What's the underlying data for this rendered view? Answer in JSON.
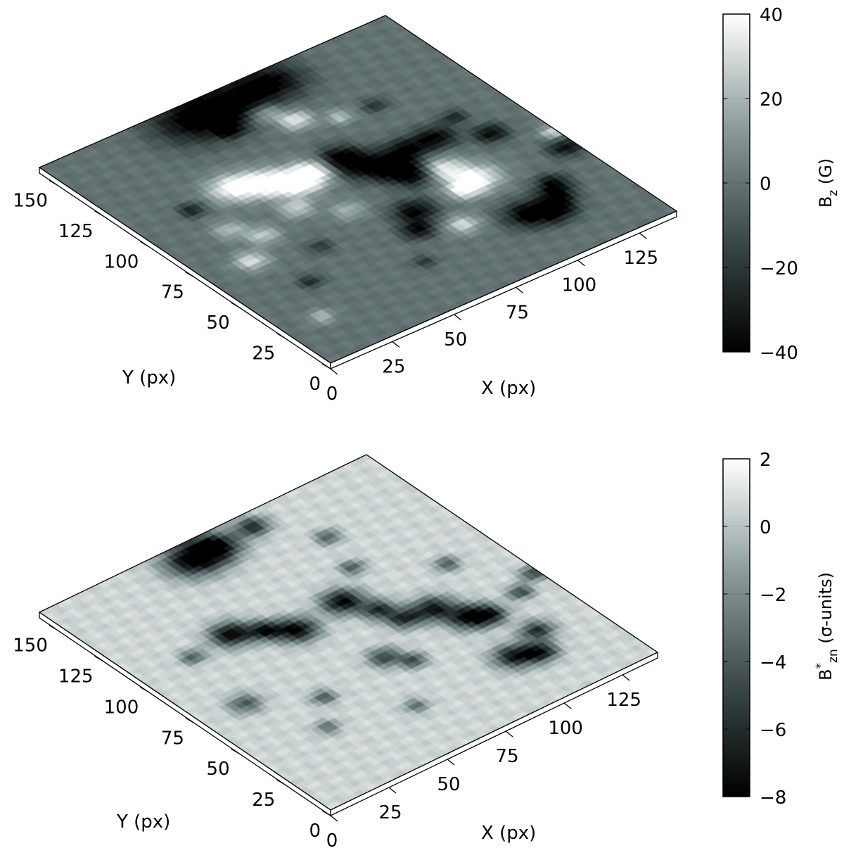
{
  "chart_data": [
    {
      "type": "heatmap",
      "view": "3D surface (oblique)",
      "x": {
        "label": "X (px)",
        "lim": [
          0,
          140
        ],
        "ticks": [
          "0",
          "25",
          "50",
          "75",
          "100",
          "125"
        ]
      },
      "y": {
        "label": "Y (px)",
        "lim": [
          0,
          160
        ],
        "ticks": [
          "0",
          "25",
          "50",
          "75",
          "100",
          "125",
          "150"
        ]
      },
      "colorbar": {
        "label": "B",
        "label_sub": "z",
        "label_tail": " (G)",
        "range": [
          -40,
          40
        ],
        "ticks": [
          "40",
          "20",
          "0",
          "−20",
          "−40"
        ],
        "colormap": [
          "#000000",
          "#3b4949",
          "#8a9a9a",
          "#ffffff"
        ]
      },
      "blobs": [
        {
          "x": 55,
          "y": 150,
          "v": -40,
          "s": 10
        },
        {
          "x": 70,
          "y": 150,
          "v": -40,
          "s": 9
        },
        {
          "x": 88,
          "y": 152,
          "v": -38,
          "s": 8
        },
        {
          "x": 75,
          "y": 138,
          "v": 30,
          "s": 4
        },
        {
          "x": 80,
          "y": 128,
          "v": 36,
          "s": 4
        },
        {
          "x": 40,
          "y": 108,
          "v": 40,
          "s": 6
        },
        {
          "x": 50,
          "y": 103,
          "v": 40,
          "s": 6
        },
        {
          "x": 58,
          "y": 96,
          "v": 40,
          "s": 6
        },
        {
          "x": 66,
          "y": 99,
          "v": 38,
          "s": 5
        },
        {
          "x": 77,
          "y": 100,
          "v": -40,
          "s": 5
        },
        {
          "x": 80,
          "y": 91,
          "v": -40,
          "s": 6
        },
        {
          "x": 86,
          "y": 83,
          "v": -40,
          "s": 5
        },
        {
          "x": 89,
          "y": 75,
          "v": -40,
          "s": 5
        },
        {
          "x": 96,
          "y": 89,
          "v": -40,
          "s": 5
        },
        {
          "x": 108,
          "y": 89,
          "v": -38,
          "s": 5
        },
        {
          "x": 123,
          "y": 79,
          "v": -38,
          "s": 4
        },
        {
          "x": 98,
          "y": 72,
          "v": 36,
          "s": 5
        },
        {
          "x": 103,
          "y": 60,
          "v": 40,
          "s": 6
        },
        {
          "x": 96,
          "y": 57,
          "v": 32,
          "s": 4
        },
        {
          "x": 76,
          "y": 57,
          "v": -40,
          "s": 5
        },
        {
          "x": 70,
          "y": 47,
          "v": -36,
          "s": 4
        },
        {
          "x": 83,
          "y": 40,
          "v": 30,
          "s": 4
        },
        {
          "x": 103,
          "y": 31,
          "v": -40,
          "s": 6
        },
        {
          "x": 111,
          "y": 27,
          "v": -40,
          "s": 5
        },
        {
          "x": 117,
          "y": 34,
          "v": -34,
          "s": 4
        },
        {
          "x": 120,
          "y": 41,
          "v": -34,
          "s": 4
        },
        {
          "x": 136,
          "y": 56,
          "v": -36,
          "s": 4
        },
        {
          "x": 139,
          "y": 66,
          "v": 30,
          "s": 3
        },
        {
          "x": 60,
          "y": 137,
          "v": -34,
          "s": 3
        },
        {
          "x": 22,
          "y": 106,
          "v": -30,
          "s": 3
        },
        {
          "x": 18,
          "y": 68,
          "v": 32,
          "s": 4
        },
        {
          "x": 30,
          "y": 78,
          "v": 26,
          "s": 4
        },
        {
          "x": 24,
          "y": 88,
          "v": 22,
          "s": 4
        },
        {
          "x": 48,
          "y": 84,
          "v": 26,
          "s": 4
        },
        {
          "x": 40,
          "y": 60,
          "v": -20,
          "s": 3
        },
        {
          "x": 60,
          "y": 72,
          "v": 20,
          "s": 4
        },
        {
          "x": 25,
          "y": 45,
          "v": -24,
          "s": 3
        },
        {
          "x": 60,
          "y": 30,
          "v": -18,
          "s": 3
        },
        {
          "x": 120,
          "y": 95,
          "v": -26,
          "s": 3
        },
        {
          "x": 92,
          "y": 120,
          "v": 24,
          "s": 3
        },
        {
          "x": 105,
          "y": 118,
          "v": -22,
          "s": 3
        },
        {
          "x": 15,
          "y": 25,
          "v": 22,
          "s": 3
        }
      ]
    },
    {
      "type": "heatmap",
      "view": "3D surface (oblique)",
      "x": {
        "label": "X (px)",
        "lim": [
          0,
          140
        ],
        "ticks": [
          "0",
          "25",
          "50",
          "75",
          "100",
          "125"
        ]
      },
      "y": {
        "label": "Y (px)",
        "lim": [
          0,
          160
        ],
        "ticks": [
          "0",
          "25",
          "50",
          "75",
          "100",
          "125",
          "150"
        ]
      },
      "colorbar": {
        "label": "B",
        "label_sup": "*",
        "label_sub": "zn",
        "label_tail": " (σ-units)",
        "range": [
          -8,
          2
        ],
        "ticks": [
          "2",
          "0",
          "−2",
          "−4",
          "−6",
          "−8"
        ],
        "colormap": [
          "#000000",
          "#3b4949",
          "#8a9a9a",
          "#ffffff"
        ]
      },
      "blobs": [
        {
          "x": 58,
          "y": 150,
          "v": -8,
          "s": 7
        },
        {
          "x": 68,
          "y": 151,
          "v": -8,
          "s": 6
        },
        {
          "x": 85,
          "y": 152,
          "v": -6,
          "s": 4
        },
        {
          "x": 40,
          "y": 106,
          "v": -8,
          "s": 5
        },
        {
          "x": 50,
          "y": 100,
          "v": -7,
          "s": 4
        },
        {
          "x": 58,
          "y": 93,
          "v": -8,
          "s": 5
        },
        {
          "x": 80,
          "y": 96,
          "v": -8,
          "s": 5
        },
        {
          "x": 86,
          "y": 84,
          "v": -6,
          "s": 4
        },
        {
          "x": 89,
          "y": 74,
          "v": -6,
          "s": 4
        },
        {
          "x": 100,
          "y": 72,
          "v": -7,
          "s": 5
        },
        {
          "x": 106,
          "y": 60,
          "v": -8,
          "s": 5
        },
        {
          "x": 112,
          "y": 56,
          "v": -6,
          "s": 4
        },
        {
          "x": 103,
          "y": 31,
          "v": -7,
          "s": 5
        },
        {
          "x": 111,
          "y": 27,
          "v": -7,
          "s": 4
        },
        {
          "x": 118,
          "y": 38,
          "v": -6,
          "s": 4
        },
        {
          "x": 128,
          "y": 60,
          "v": -5,
          "s": 3
        },
        {
          "x": 138,
          "y": 66,
          "v": -5,
          "s": 3
        },
        {
          "x": 70,
          "y": 60,
          "v": -5,
          "s": 4
        },
        {
          "x": 76,
          "y": 52,
          "v": -5,
          "s": 3
        },
        {
          "x": 18,
          "y": 70,
          "v": -4,
          "s": 4
        },
        {
          "x": 40,
          "y": 55,
          "v": -4,
          "s": 3
        },
        {
          "x": 22,
          "y": 104,
          "v": -4,
          "s": 3
        },
        {
          "x": 95,
          "y": 110,
          "v": -4,
          "s": 3
        },
        {
          "x": 120,
          "y": 90,
          "v": -4,
          "s": 3
        },
        {
          "x": 60,
          "y": 30,
          "v": -3,
          "s": 3
        },
        {
          "x": 30,
          "y": 40,
          "v": -3,
          "s": 3
        },
        {
          "x": 100,
          "y": 130,
          "v": -4,
          "s": 3
        }
      ]
    }
  ]
}
